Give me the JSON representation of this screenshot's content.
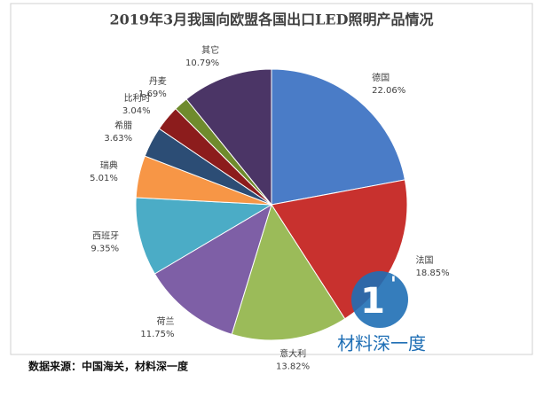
{
  "chart_data": {
    "type": "pie",
    "title": "2019年3月我国向欧盟各国出口LED照明产品情况",
    "categories": [
      "德国",
      "法国",
      "意大利",
      "荷兰",
      "西班牙",
      "瑞典",
      "希腊",
      "比利时",
      "丹麦",
      "其它"
    ],
    "values": [
      22.06,
      18.85,
      13.82,
      11.75,
      9.35,
      5.01,
      3.63,
      3.04,
      1.69,
      10.79
    ],
    "value_labels": [
      "22.06%",
      "18.85%",
      "13.82%",
      "11.75%",
      "9.35%",
      "5.01%",
      "3.63%",
      "3.04%",
      "1.69%",
      "10.79%"
    ],
    "colors": [
      "#4a7cc7",
      "#c8312e",
      "#9bbb59",
      "#7e5fa6",
      "#4bacc6",
      "#f79646",
      "#2c4d75",
      "#8c1c1c",
      "#6f8b2d",
      "#4b3566"
    ]
  },
  "watermark": "材料深一度",
  "source": "数据来源：中国海关，材料深一度"
}
